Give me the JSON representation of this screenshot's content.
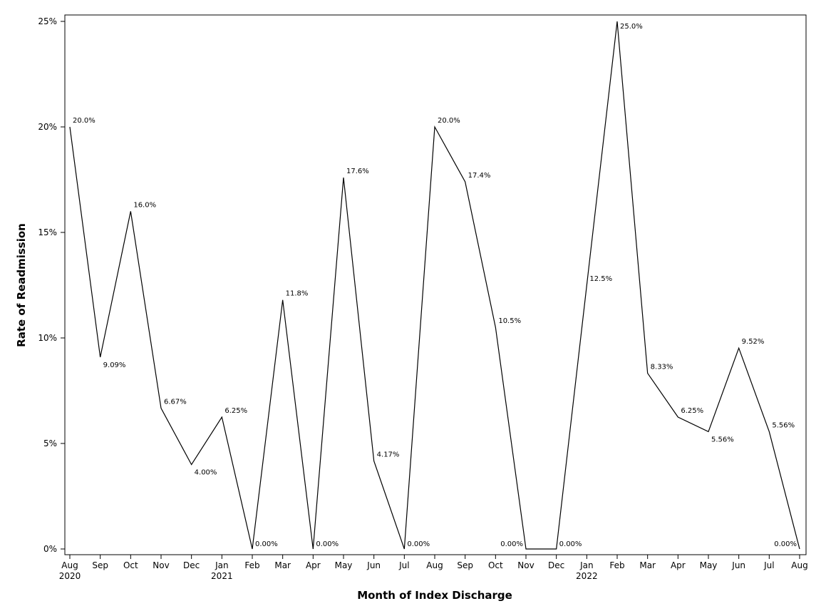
{
  "chart_data": {
    "type": "line",
    "title": "",
    "xlabel": "Month of Index Discharge",
    "ylabel": "Rate of Readmission",
    "ylim": [
      0,
      25
    ],
    "yticks": [
      "0%",
      "5%",
      "10%",
      "15%",
      "20%",
      "25%"
    ],
    "grid": false,
    "legend": "none",
    "line_color": "#000000",
    "categories": [
      {
        "month": "Aug",
        "year": "2020"
      },
      {
        "month": "Sep",
        "year": ""
      },
      {
        "month": "Oct",
        "year": ""
      },
      {
        "month": "Nov",
        "year": ""
      },
      {
        "month": "Dec",
        "year": ""
      },
      {
        "month": "Jan",
        "year": "2021"
      },
      {
        "month": "Feb",
        "year": ""
      },
      {
        "month": "Mar",
        "year": ""
      },
      {
        "month": "Apr",
        "year": ""
      },
      {
        "month": "May",
        "year": ""
      },
      {
        "month": "Jun",
        "year": ""
      },
      {
        "month": "Jul",
        "year": ""
      },
      {
        "month": "Aug",
        "year": ""
      },
      {
        "month": "Sep",
        "year": ""
      },
      {
        "month": "Oct",
        "year": ""
      },
      {
        "month": "Nov",
        "year": ""
      },
      {
        "month": "Dec",
        "year": ""
      },
      {
        "month": "Jan",
        "year": "2022"
      },
      {
        "month": "Feb",
        "year": ""
      },
      {
        "month": "Mar",
        "year": ""
      },
      {
        "month": "Apr",
        "year": ""
      },
      {
        "month": "May",
        "year": ""
      },
      {
        "month": "Jun",
        "year": ""
      },
      {
        "month": "Jul",
        "year": ""
      },
      {
        "month": "Aug",
        "year": ""
      }
    ],
    "values": [
      20.0,
      9.09,
      16.0,
      6.67,
      4.0,
      6.25,
      0.0,
      11.8,
      0.0,
      17.6,
      4.17,
      0.0,
      20.0,
      17.4,
      10.5,
      0.0,
      0.0,
      12.5,
      25.0,
      8.33,
      6.25,
      5.56,
      9.52,
      5.56,
      0.0
    ],
    "data_labels": [
      "20.0%",
      "9.09%",
      "16.0%",
      "6.67%",
      "4.00%",
      "6.25%",
      "0.00%",
      "11.8%",
      "0.00%",
      "17.6%",
      "4.17%",
      "0.00%",
      "20.0%",
      "17.4%",
      "10.5%",
      "0.00%",
      "0.00%",
      "12.5%",
      "25.0%",
      "8.33%",
      "6.25%",
      "5.56%",
      "9.52%",
      "5.56%",
      "0.00%"
    ]
  }
}
